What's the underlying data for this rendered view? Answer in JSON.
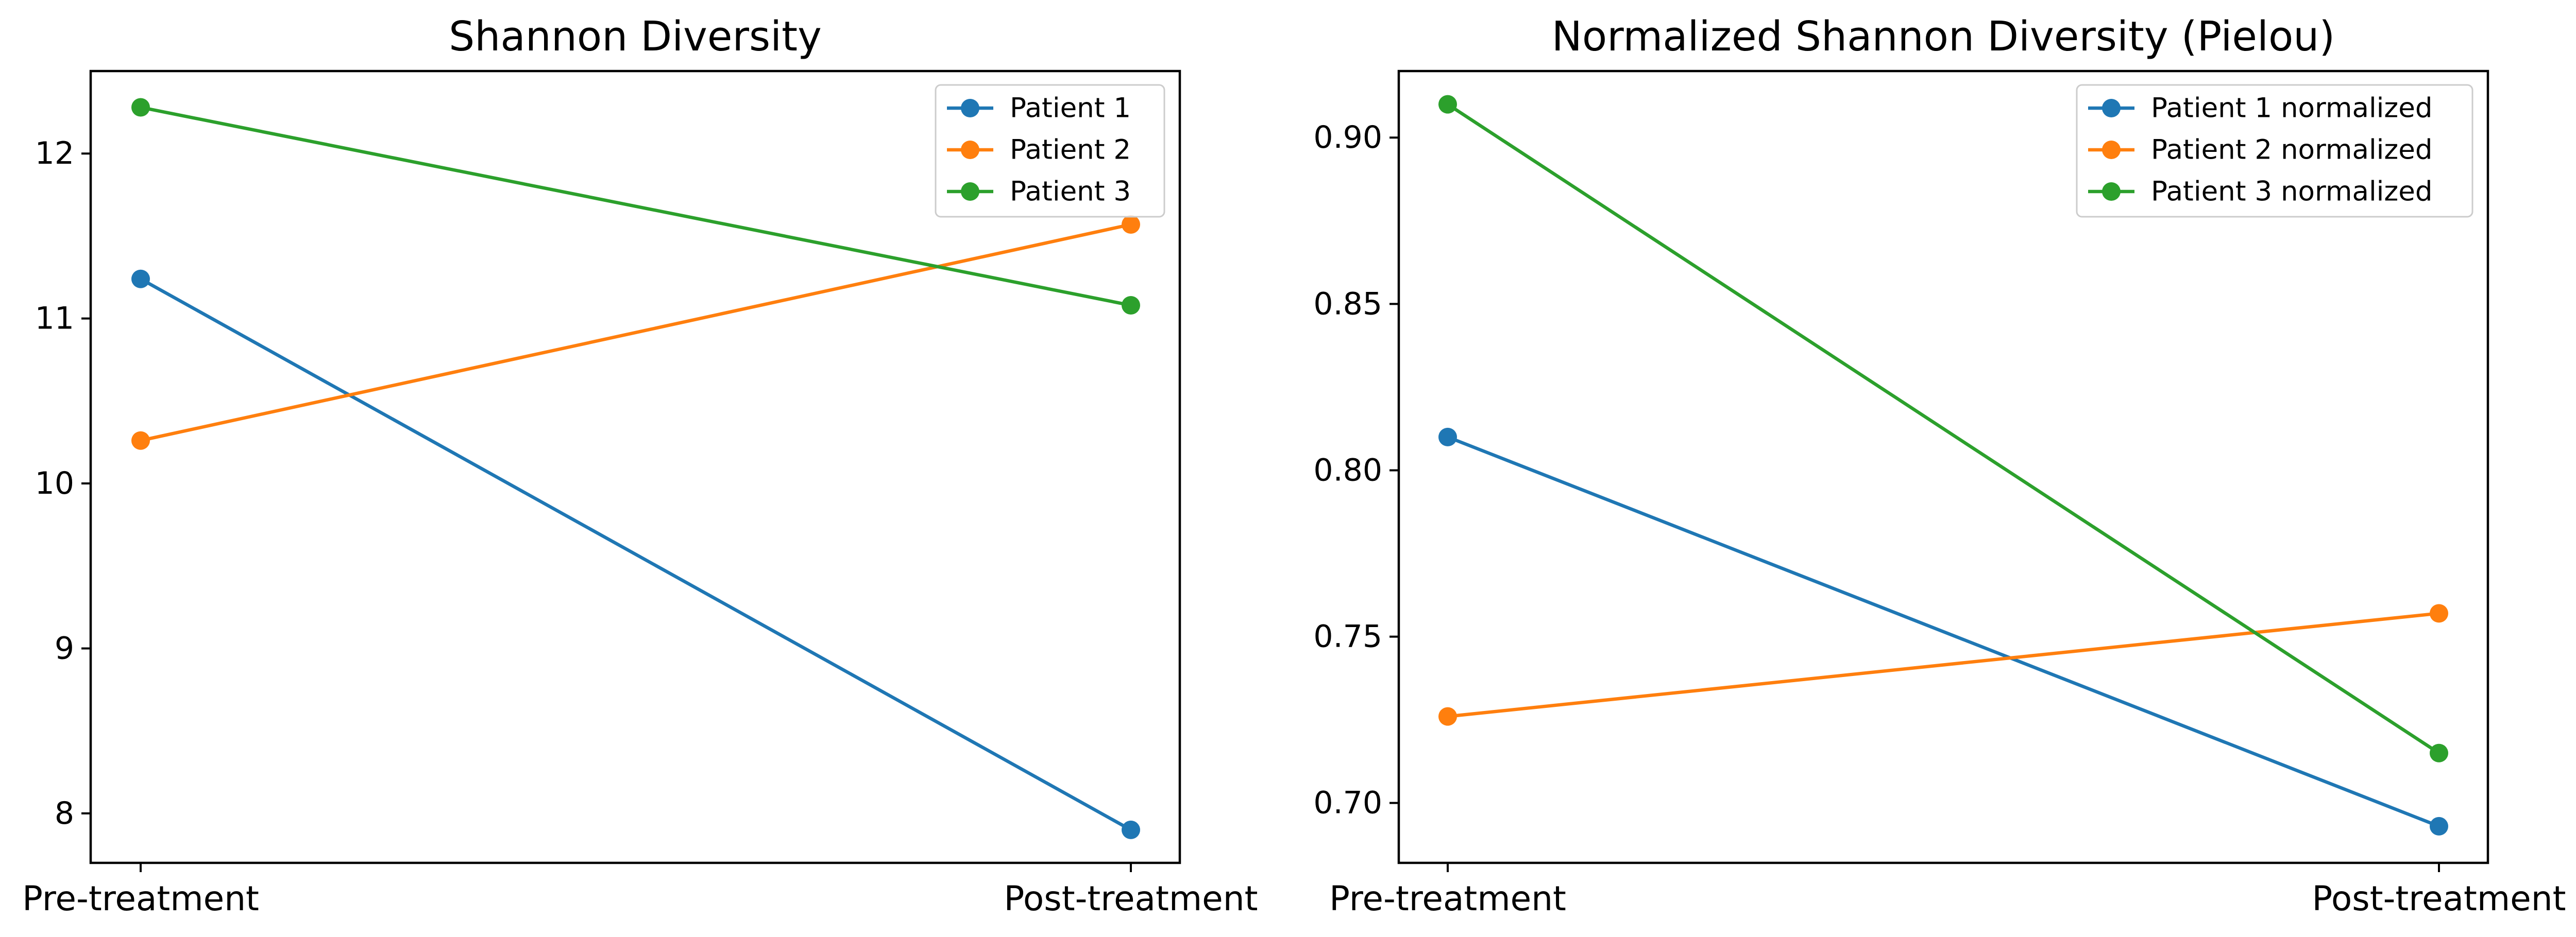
{
  "colors": {
    "patient_1": "#1f77b4",
    "patient_2": "#ff7f0e",
    "patient_3": "#2ca02c"
  },
  "chart_data": [
    {
      "type": "line",
      "title": "Shannon Diversity",
      "xlabel": "",
      "ylabel": "",
      "categories": [
        "Pre-treatment",
        "Post-treatment"
      ],
      "ylim": [
        7.7,
        12.5
      ],
      "yticks": [
        8,
        9,
        10,
        11,
        12
      ],
      "ytick_labels": [
        "8",
        "9",
        "10",
        "11",
        "12"
      ],
      "grid": false,
      "legend_position": "top-right",
      "series": [
        {
          "name": "Patient 1",
          "color": "#1f77b4",
          "values": [
            11.24,
            7.9
          ]
        },
        {
          "name": "Patient 2",
          "color": "#ff7f0e",
          "values": [
            10.26,
            11.57
          ]
        },
        {
          "name": "Patient 3",
          "color": "#2ca02c",
          "values": [
            12.28,
            11.08
          ]
        }
      ]
    },
    {
      "type": "line",
      "title": "Normalized Shannon Diversity (Pielou)",
      "xlabel": "",
      "ylabel": "",
      "categories": [
        "Pre-treatment",
        "Post-treatment"
      ],
      "ylim": [
        0.682,
        0.92
      ],
      "yticks": [
        0.7,
        0.75,
        0.8,
        0.85,
        0.9
      ],
      "ytick_labels": [
        "0.70",
        "0.75",
        "0.80",
        "0.85",
        "0.90"
      ],
      "grid": false,
      "legend_position": "top-right",
      "series": [
        {
          "name": "Patient 1 normalized",
          "color": "#1f77b4",
          "values": [
            0.81,
            0.693
          ]
        },
        {
          "name": "Patient 2 normalized",
          "color": "#ff7f0e",
          "values": [
            0.726,
            0.757
          ]
        },
        {
          "name": "Patient 3 normalized",
          "color": "#2ca02c",
          "values": [
            0.91,
            0.715
          ]
        }
      ]
    }
  ]
}
